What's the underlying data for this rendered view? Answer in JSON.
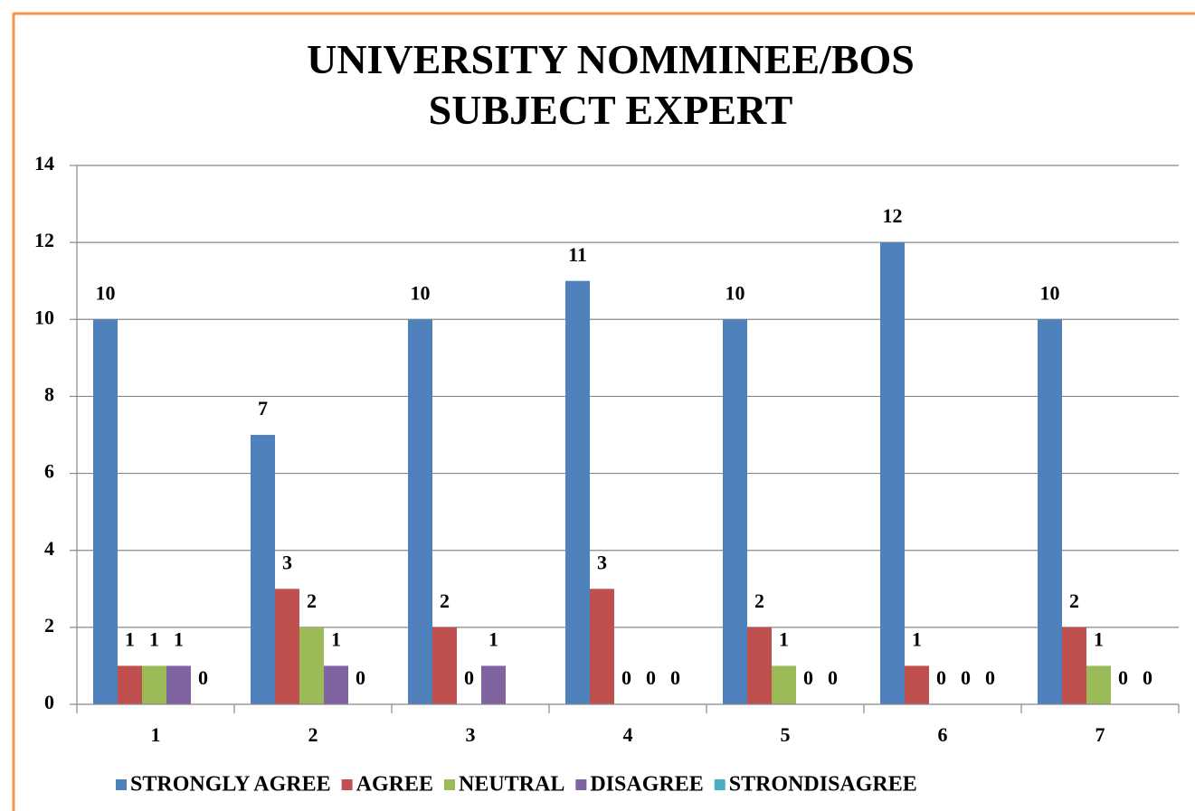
{
  "chart_data": {
    "type": "bar",
    "title": "UNIVERSITY NOMMINEE/BOS SUBJECT EXPERT",
    "categories": [
      "1",
      "2",
      "3",
      "4",
      "5",
      "6",
      "7"
    ],
    "series": [
      {
        "name": "STRONGLY AGREE",
        "color": "#4f81bd",
        "values": [
          10,
          7,
          10,
          11,
          10,
          12,
          10
        ]
      },
      {
        "name": "AGREE",
        "color": "#c0504d",
        "values": [
          1,
          3,
          2,
          3,
          2,
          1,
          2
        ]
      },
      {
        "name": "NEUTRAL",
        "color": "#9bbb59",
        "values": [
          1,
          2,
          0,
          0,
          1,
          0,
          1
        ]
      },
      {
        "name": "DISAGREE",
        "color": "#8064a2",
        "values": [
          1,
          1,
          1,
          0,
          0,
          0,
          0
        ]
      },
      {
        "name": "STRONDISAGREE",
        "color": "#4bacc6",
        "values": [
          0,
          0,
          null,
          0,
          0,
          0,
          0
        ]
      }
    ],
    "ylim": [
      0,
      14
    ],
    "yticks": [
      0,
      2,
      4,
      6,
      8,
      10,
      12,
      14
    ],
    "grid": true,
    "legend": "bottom"
  }
}
